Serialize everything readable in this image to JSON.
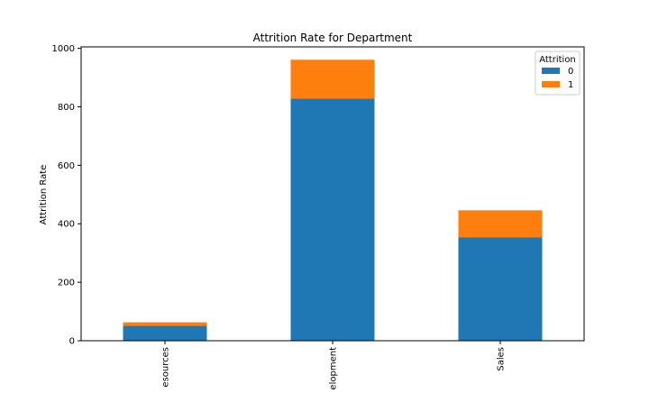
{
  "chart_data": {
    "type": "bar",
    "stacked": true,
    "title": "Attrition Rate for Department",
    "xlabel": "",
    "ylabel": "Attrition Rate",
    "categories": [
      "Human Resources",
      "Research & Development",
      "Sales"
    ],
    "category_labels_visible": [
      "esources",
      "elopment",
      "Sales"
    ],
    "series": [
      {
        "name": "0",
        "color": "#1f77b4",
        "values": [
          51,
          828,
          354
        ]
      },
      {
        "name": "1",
        "color": "#ff7f0e",
        "values": [
          12,
          133,
          92
        ]
      }
    ],
    "ylim": [
      0,
      1005
    ],
    "yticks": [
      0,
      200,
      400,
      600,
      800,
      1000
    ],
    "grid": false,
    "legend": {
      "title": "Attrition",
      "placement": "top-right"
    }
  }
}
